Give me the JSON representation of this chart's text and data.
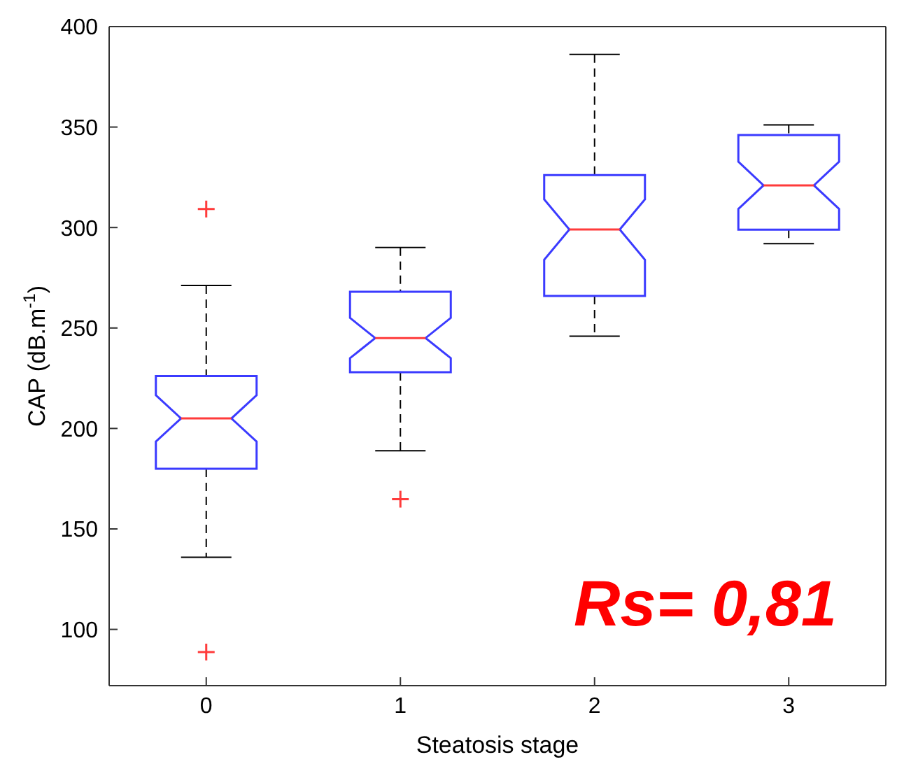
{
  "chart_data": {
    "type": "box",
    "xlabel": "Steatosis stage",
    "ylabel": "CAP (dB.m$^{-1}$)",
    "categories": [
      "0",
      "1",
      "2",
      "3"
    ],
    "color": "#3b3bff",
    "marker": "cross",
    "ylim": [
      72,
      400
    ],
    "yticks": [
      100,
      150,
      200,
      250,
      300,
      350,
      400
    ],
    "boxes": [
      {
        "low": 136,
        "q1": 180,
        "median": 205,
        "q3": 226,
        "high": 271,
        "outliers": [
          309,
          89
        ]
      },
      {
        "low": 189,
        "q1": 228,
        "median": 245,
        "q3": 268,
        "high": 290,
        "outliers": [
          165
        ]
      },
      {
        "low": 246,
        "q1": 266,
        "median": 299,
        "q3": 326,
        "high": 386
      },
      {
        "low": 292,
        "q1": 299,
        "median": 321,
        "q3": 346,
        "high": 351
      }
    ],
    "annotations": [
      "Rs= 0,81"
    ]
  }
}
